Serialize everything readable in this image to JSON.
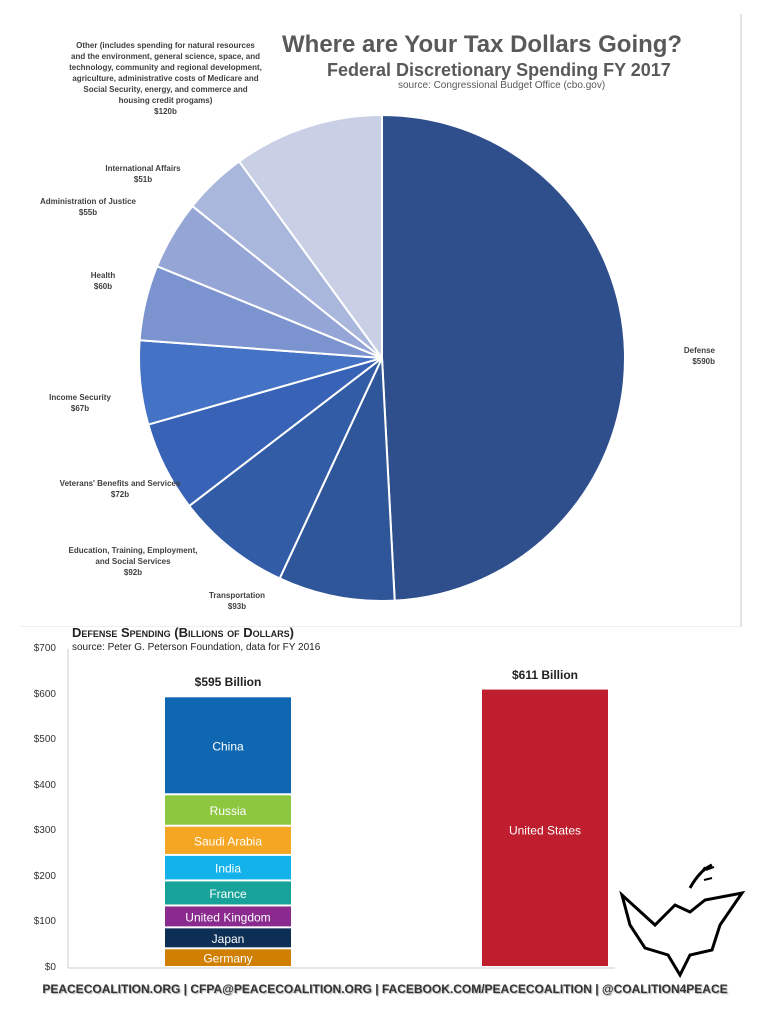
{
  "pie": {
    "title": "Where are Your Tax Dollars Going?",
    "subtitle": "Federal Discretionary Spending FY 2017",
    "source": "source: Congressional Budget Office (cbo.gov)"
  },
  "chart_data": [
    {
      "type": "pie",
      "title": "Federal Discretionary Spending FY 2017",
      "unit": "billions USD",
      "slices": [
        {
          "name": "Defense",
          "value": 590,
          "label": "$590b",
          "color": "#2f4f8c"
        },
        {
          "name": "Transportation",
          "value": 93,
          "label": "$93b",
          "color": "#2f5699"
        },
        {
          "name": "Education, Training, Employment, and Social Services",
          "value": 92,
          "label": "$92b",
          "color": "#335ca6"
        },
        {
          "name": "Veterans' Benefits and Services",
          "value": 72,
          "label": "$72b",
          "color": "#3862b6"
        },
        {
          "name": "Income Security",
          "value": 67,
          "label": "$67b",
          "color": "#4472c4"
        },
        {
          "name": "Health",
          "value": 60,
          "label": "$60b",
          "color": "#7b93cf"
        },
        {
          "name": "Administration of Justice",
          "value": 55,
          "label": "$55b",
          "color": "#95a6d6"
        },
        {
          "name": "International Affairs",
          "value": 51,
          "label": "$51b",
          "color": "#aab7dc"
        },
        {
          "name": "Other (includes spending for natural resources and the environment, general science, space, and technology, community and regional development, agriculture, administrative costs of Medicare and Social Security, energy, and commerce and housing credit progams)",
          "value": 120,
          "label": "$120b",
          "color": "#c9d0e6"
        }
      ]
    },
    {
      "type": "bar",
      "stacked": true,
      "title": "Defense Spending (Billions of Dollars)",
      "subtitle": "source: Peter G. Peterson Foundation, data for FY 2016",
      "ylim": [
        0,
        700
      ],
      "yticks": [
        "$0",
        "$100",
        "$200",
        "$300",
        "$400",
        "$500",
        "$600",
        "$700"
      ],
      "bars": [
        {
          "total_label": "$595 Billion",
          "segments": [
            {
              "name": "Germany",
              "value": 41,
              "color": "#d07f00"
            },
            {
              "name": "Japan",
              "value": 46,
              "color": "#0e2f55"
            },
            {
              "name": "United Kingdom",
              "value": 48,
              "color": "#8a2a8f"
            },
            {
              "name": "France",
              "value": 55,
              "color": "#17a399"
            },
            {
              "name": "India",
              "value": 56,
              "color": "#13b2ea"
            },
            {
              "name": "Saudi Arabia",
              "value": 64,
              "color": "#f5a623"
            },
            {
              "name": "Russia",
              "value": 69,
              "color": "#8dc63f"
            },
            {
              "name": "China",
              "value": 215,
              "color": "#0f67b1"
            }
          ]
        },
        {
          "total_label": "$611 Billion",
          "segments": [
            {
              "name": "United States",
              "value": 611,
              "color": "#be1e2d"
            }
          ]
        }
      ]
    }
  ],
  "footer": "PEACECOALITION.ORG | CFPA@PEACECOALITION.ORG | FACEBOOK.COM/PEACECOALITION | @COALITION4PEACE"
}
